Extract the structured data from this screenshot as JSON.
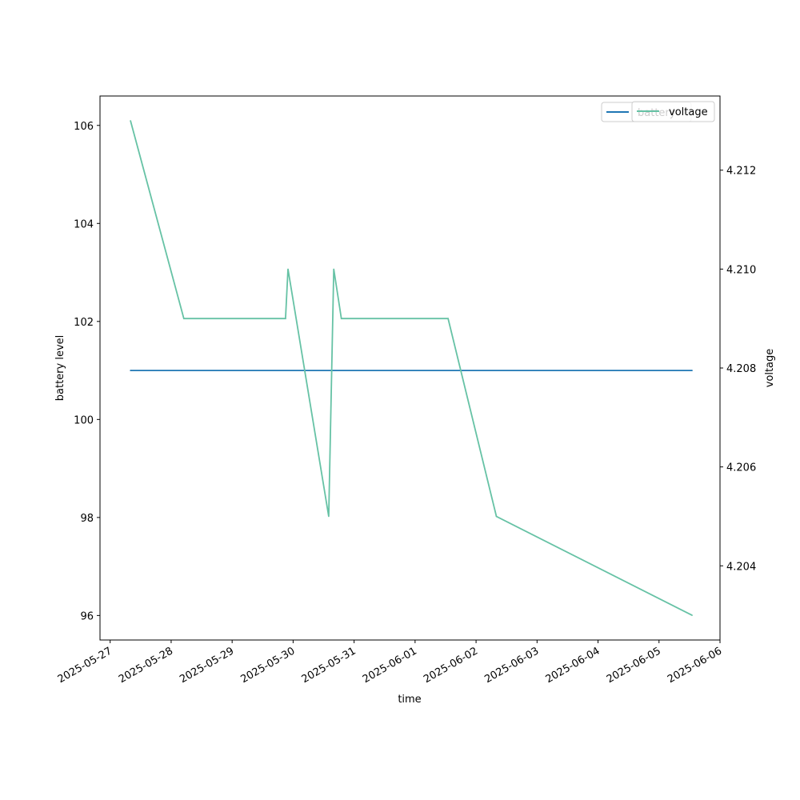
{
  "chart_data": {
    "type": "line",
    "xlabel": "time",
    "ylabel_left": "battery level",
    "ylabel_right": "voltage",
    "x_tick_labels": [
      "2025-05-27",
      "2025-05-28",
      "2025-05-29",
      "2025-05-30",
      "2025-05-31",
      "2025-06-01",
      "2025-06-02",
      "2025-06-03",
      "2025-06-04",
      "2025-06-05",
      "2025-06-06"
    ],
    "x_range": [
      "2025-05-26T20:00",
      "2025-06-06T00:00"
    ],
    "ylim_left": [
      95.5,
      106.6
    ],
    "ylim_right": [
      4.2025,
      4.2135
    ],
    "y_ticks_left": [
      96,
      98,
      100,
      102,
      104,
      106
    ],
    "y_ticks_right": [
      4.204,
      4.206,
      4.208,
      4.21,
      4.212
    ],
    "grid": false,
    "legends": [
      {
        "position": "upper right",
        "entries": [
          "battery"
        ],
        "color": "#1f77b4"
      },
      {
        "position": "upper right",
        "entries": [
          "voltage"
        ],
        "color": "#66c2a5"
      }
    ],
    "series": [
      {
        "name": "battery",
        "axis": "left",
        "color": "#1f77b4",
        "points": [
          {
            "x": "2025-05-27T08:00",
            "y": 101
          },
          {
            "x": "2025-06-05T13:00",
            "y": 101
          }
        ]
      },
      {
        "name": "voltage",
        "axis": "right",
        "color": "#66c2a5",
        "points": [
          {
            "x": "2025-05-27T08:00",
            "y": 4.213
          },
          {
            "x": "2025-05-28T05:00",
            "y": 4.209
          },
          {
            "x": "2025-05-29T21:00",
            "y": 4.209
          },
          {
            "x": "2025-05-29T22:00",
            "y": 4.21
          },
          {
            "x": "2025-05-30T14:00",
            "y": 4.205
          },
          {
            "x": "2025-05-30T16:00",
            "y": 4.21
          },
          {
            "x": "2025-05-30T19:00",
            "y": 4.209
          },
          {
            "x": "2025-06-01T13:00",
            "y": 4.209
          },
          {
            "x": "2025-06-02T08:00",
            "y": 4.205
          },
          {
            "x": "2025-06-05T13:00",
            "y": 4.203
          }
        ]
      }
    ]
  }
}
